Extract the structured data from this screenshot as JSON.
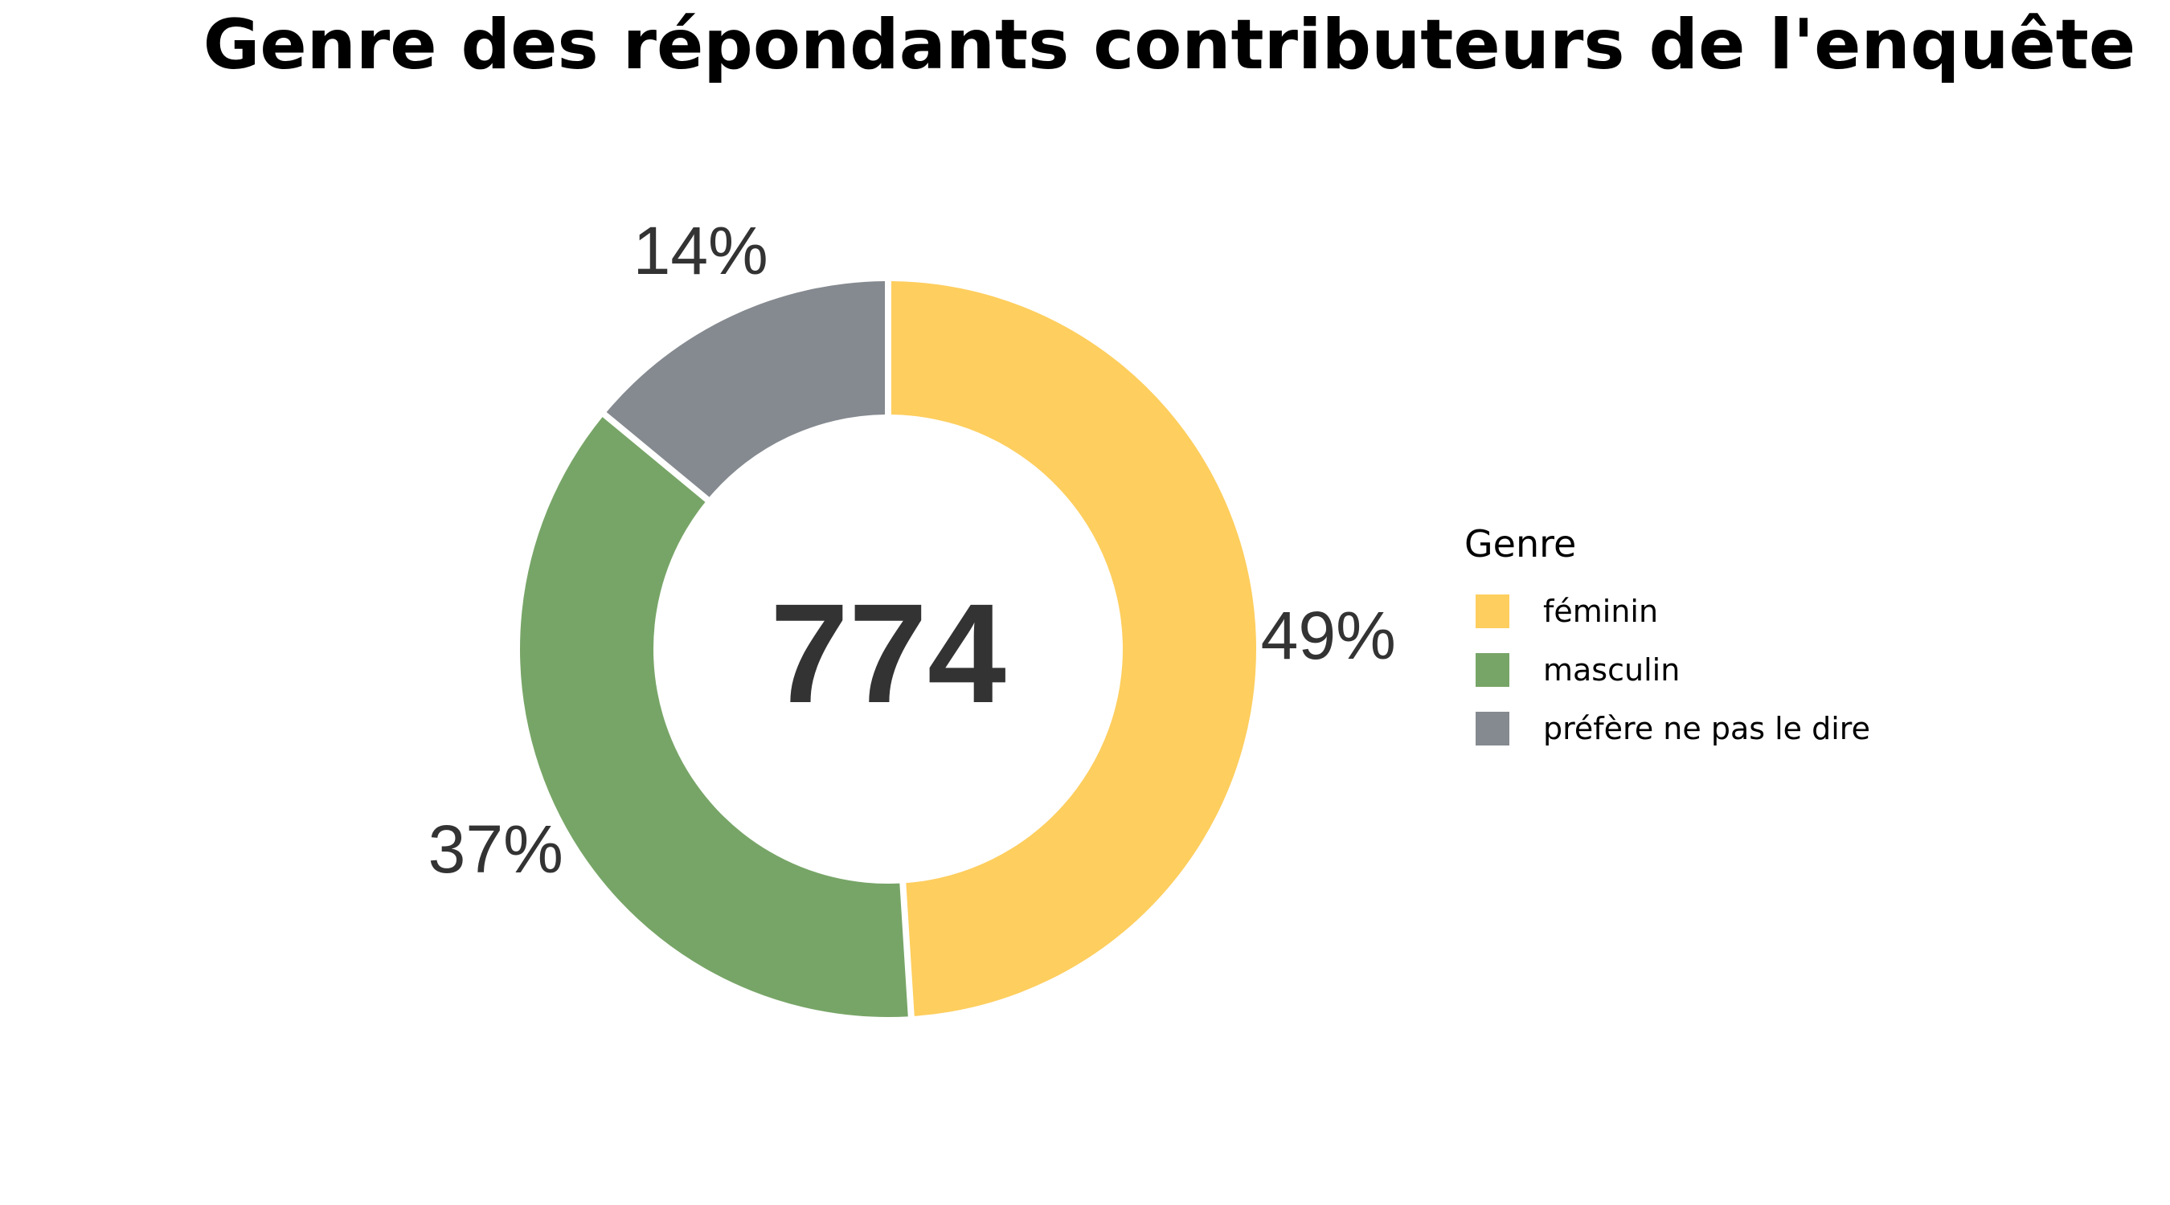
{
  "chart_data": {
    "type": "pie",
    "variant": "donut",
    "title": "Genre des répondants contributeurs de l'enquête",
    "center_label": "774",
    "legend_title": "Genre",
    "legend_position": "right",
    "slices": [
      {
        "name": "féminin",
        "value": 49,
        "label": "49%",
        "color": "#FECE5E"
      },
      {
        "name": "masculin",
        "value": 37,
        "label": "37%",
        "color": "#77A567"
      },
      {
        "name": "préfère ne pas le dire",
        "value": 14,
        "label": "14%",
        "color": "#858A90"
      }
    ]
  }
}
